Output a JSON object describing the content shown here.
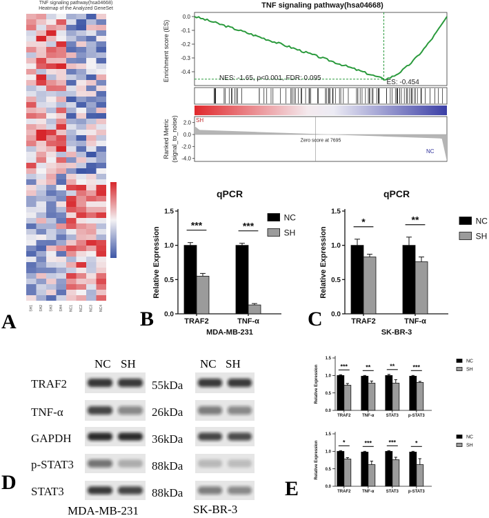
{
  "panel_letters": {
    "A": "A",
    "B": "B",
    "C": "C",
    "D": "D",
    "E": "E"
  },
  "heatmap": {
    "title_line1": "TNF signaling pathway(hsa04668)",
    "title_line2": "Heatmap of the Analyzed GeneSet",
    "columns": [
      "SH1",
      "SH2",
      "SH3",
      "SH4",
      "NC1",
      "NC2",
      "NC3",
      "NC4"
    ],
    "colors": {
      "high": "#d7262b",
      "mid": "#f4f2f4",
      "low": "#3d56a6"
    }
  },
  "gsea": {
    "title": "TNF signaling pathway(hsa04668)",
    "es_ylabel": "Enrichment score (ES)",
    "es_ticks": [
      "0.0",
      "-0.1",
      "-0.2",
      "-0.3",
      "-0.4"
    ],
    "stats_text": "NES: -1.65, p<0.001, FDR: 0.095",
    "es_text": "ES: -0.454",
    "metric_ylabel_1": "Ranked Metric",
    "metric_ylabel_2": "(signal_to_noise)",
    "metric_ticks": [
      "2.0",
      "0.0",
      "-2.0",
      "-4.0"
    ],
    "metric_tick_zero": "0.0",
    "metric_tick_neg_half": "-2.0",
    "zero_score_text": "Zero score at 7695",
    "sh_label": "SH",
    "nc_label": "NC",
    "colors": {
      "curve": "#2a9a3c",
      "dashed": "#2a9a3c",
      "sh": "#c0282a",
      "nc": "#2d2f9a"
    }
  },
  "blot": {
    "proteins": [
      "TRAF2",
      "TNF-α",
      "GAPDH",
      "p-STAT3",
      "STAT3"
    ],
    "kda": [
      "55kDa",
      "26kDa",
      "36kDa",
      "88kDa",
      "88kDa"
    ],
    "group_labels": [
      "NC",
      "SH"
    ],
    "cell_line_left": "MDA-MB-231",
    "cell_line_right": "SK-BR-3"
  },
  "chart_data": [
    {
      "id": "B",
      "type": "bar",
      "title": "qPCR",
      "xlabel": "MDA-MB-231",
      "ylabel": "Relative Expression",
      "categories": [
        "TRAF2",
        "TNF-α"
      ],
      "series": [
        {
          "name": "NC",
          "values": [
            1.0,
            1.0
          ],
          "errors": [
            0.04,
            0.03
          ],
          "color": "#000000"
        },
        {
          "name": "SH",
          "values": [
            0.55,
            0.13
          ],
          "errors": [
            0.04,
            0.02
          ],
          "color": "#9b9b9b"
        }
      ],
      "significance": [
        "***",
        "***"
      ],
      "ylim": [
        0,
        1.5
      ],
      "yticks": [
        "0.0",
        "0.5",
        "1.0",
        "1.5"
      ],
      "legend": "top-right"
    },
    {
      "id": "C",
      "type": "bar",
      "title": "qPCR",
      "xlabel": "SK-BR-3",
      "ylabel": "Relative Expression",
      "categories": [
        "TRAF2",
        "TNF-α"
      ],
      "series": [
        {
          "name": "NC",
          "values": [
            1.0,
            1.0
          ],
          "errors": [
            0.09,
            0.12
          ],
          "color": "#000000"
        },
        {
          "name": "SH",
          "values": [
            0.83,
            0.76
          ],
          "errors": [
            0.04,
            0.07
          ],
          "color": "#9b9b9b"
        }
      ],
      "significance": [
        "*",
        "**"
      ],
      "ylim": [
        0,
        1.5
      ],
      "yticks": [
        "0.0",
        "0.5",
        "1.0",
        "1.5"
      ],
      "legend": "top-right"
    },
    {
      "id": "E1",
      "type": "bar",
      "title": "",
      "xlabel": "",
      "ylabel": "Relative Expression",
      "categories": [
        "TRAF2",
        "TNF-α",
        "STAT3",
        "p-STAT3"
      ],
      "series": [
        {
          "name": "NC",
          "values": [
            1.0,
            0.98,
            1.0,
            0.98
          ],
          "errors": [
            0.02,
            0.02,
            0.03,
            0.02
          ],
          "color": "#000000"
        },
        {
          "name": "SH",
          "values": [
            0.72,
            0.78,
            0.78,
            0.8
          ],
          "errors": [
            0.05,
            0.06,
            0.1,
            0.03
          ],
          "color": "#9b9b9b"
        }
      ],
      "significance": [
        "***",
        "**",
        "**",
        "***"
      ],
      "ylim": [
        0,
        1.5
      ],
      "yticks": [
        "0.0",
        "0.5",
        "1.0",
        "1.5"
      ],
      "legend": "top-right"
    },
    {
      "id": "E2",
      "type": "bar",
      "title": "",
      "xlabel": "",
      "ylabel": "Relative Expression",
      "categories": [
        "TRAF2",
        "TNF-α",
        "STAT3",
        "p-STAT3"
      ],
      "series": [
        {
          "name": "NC",
          "values": [
            1.0,
            0.98,
            1.0,
            0.98
          ],
          "errors": [
            0.02,
            0.02,
            0.02,
            0.02
          ],
          "color": "#000000"
        },
        {
          "name": "SH",
          "values": [
            0.78,
            0.62,
            0.76,
            0.62
          ],
          "errors": [
            0.04,
            0.1,
            0.07,
            0.17
          ],
          "color": "#9b9b9b"
        }
      ],
      "significance": [
        "*",
        "***",
        "***",
        "*"
      ],
      "ylim": [
        0,
        1.5
      ],
      "yticks": [
        "0.0",
        "0.5",
        "1.0",
        "1.5"
      ],
      "legend": "top-right"
    }
  ]
}
